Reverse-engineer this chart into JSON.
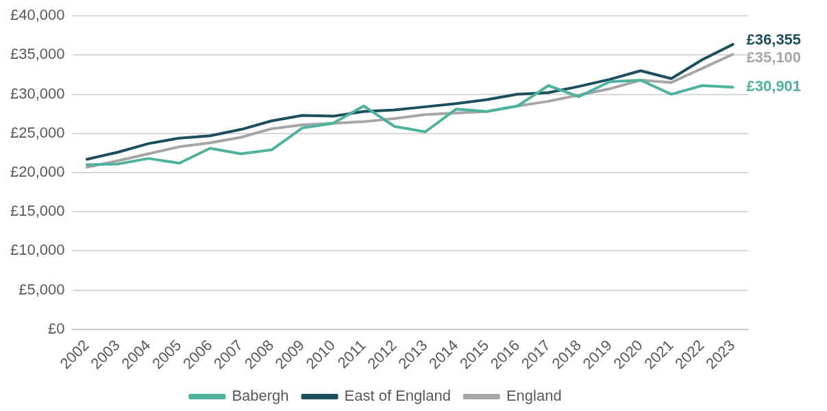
{
  "chart_data": {
    "type": "line",
    "categories": [
      "2002",
      "2003",
      "2004",
      "2005",
      "2006",
      "2007",
      "2008",
      "2009",
      "2010",
      "2011",
      "2012",
      "2013",
      "2014",
      "2015",
      "2016",
      "2017",
      "2018",
      "2019",
      "2020",
      "2021",
      "2022",
      "2023"
    ],
    "series": [
      {
        "name": "Babergh",
        "color": "#4db39e",
        "values": [
          21000,
          21100,
          21800,
          21200,
          23100,
          22400,
          22900,
          25700,
          26300,
          28500,
          25900,
          25200,
          28100,
          27800,
          28500,
          31100,
          29700,
          31600,
          31800,
          30000,
          31100,
          30901
        ]
      },
      {
        "name": "East of England",
        "color": "#1b4f5c",
        "values": [
          21700,
          22600,
          23700,
          24400,
          24700,
          25500,
          26600,
          27300,
          27200,
          27800,
          28000,
          28400,
          28800,
          29300,
          30000,
          30200,
          31000,
          31900,
          33000,
          32000,
          34400,
          36355
        ]
      },
      {
        "name": "England",
        "color": "#a6a6a6",
        "values": [
          20700,
          21500,
          22400,
          23300,
          23800,
          24500,
          25600,
          26100,
          26300,
          26500,
          26900,
          27400,
          27600,
          27800,
          28500,
          29100,
          29900,
          30700,
          31800,
          31500,
          33300,
          35100
        ]
      }
    ],
    "ylim": [
      0,
      40000
    ],
    "yticks": [
      {
        "value": 0,
        "label": "£0"
      },
      {
        "value": 5000,
        "label": "£5,000"
      },
      {
        "value": 10000,
        "label": "£10,000"
      },
      {
        "value": 15000,
        "label": "£15,000"
      },
      {
        "value": 20000,
        "label": "£20,000"
      },
      {
        "value": 25000,
        "label": "£25,000"
      },
      {
        "value": 30000,
        "label": "£30,000"
      },
      {
        "value": 35000,
        "label": "£35,000"
      },
      {
        "value": 40000,
        "label": "£40,000"
      }
    ],
    "grid": "y",
    "legend": "bottom",
    "marker": "none",
    "line_style": "solid",
    "annotations": [
      {
        "text": "£30,901",
        "x": "2023",
        "y": 30901
      },
      {
        "text": "£36,355",
        "x": "2023",
        "y": 36355
      },
      {
        "text": "£35,100",
        "x": "2023",
        "y": 35100
      }
    ]
  }
}
